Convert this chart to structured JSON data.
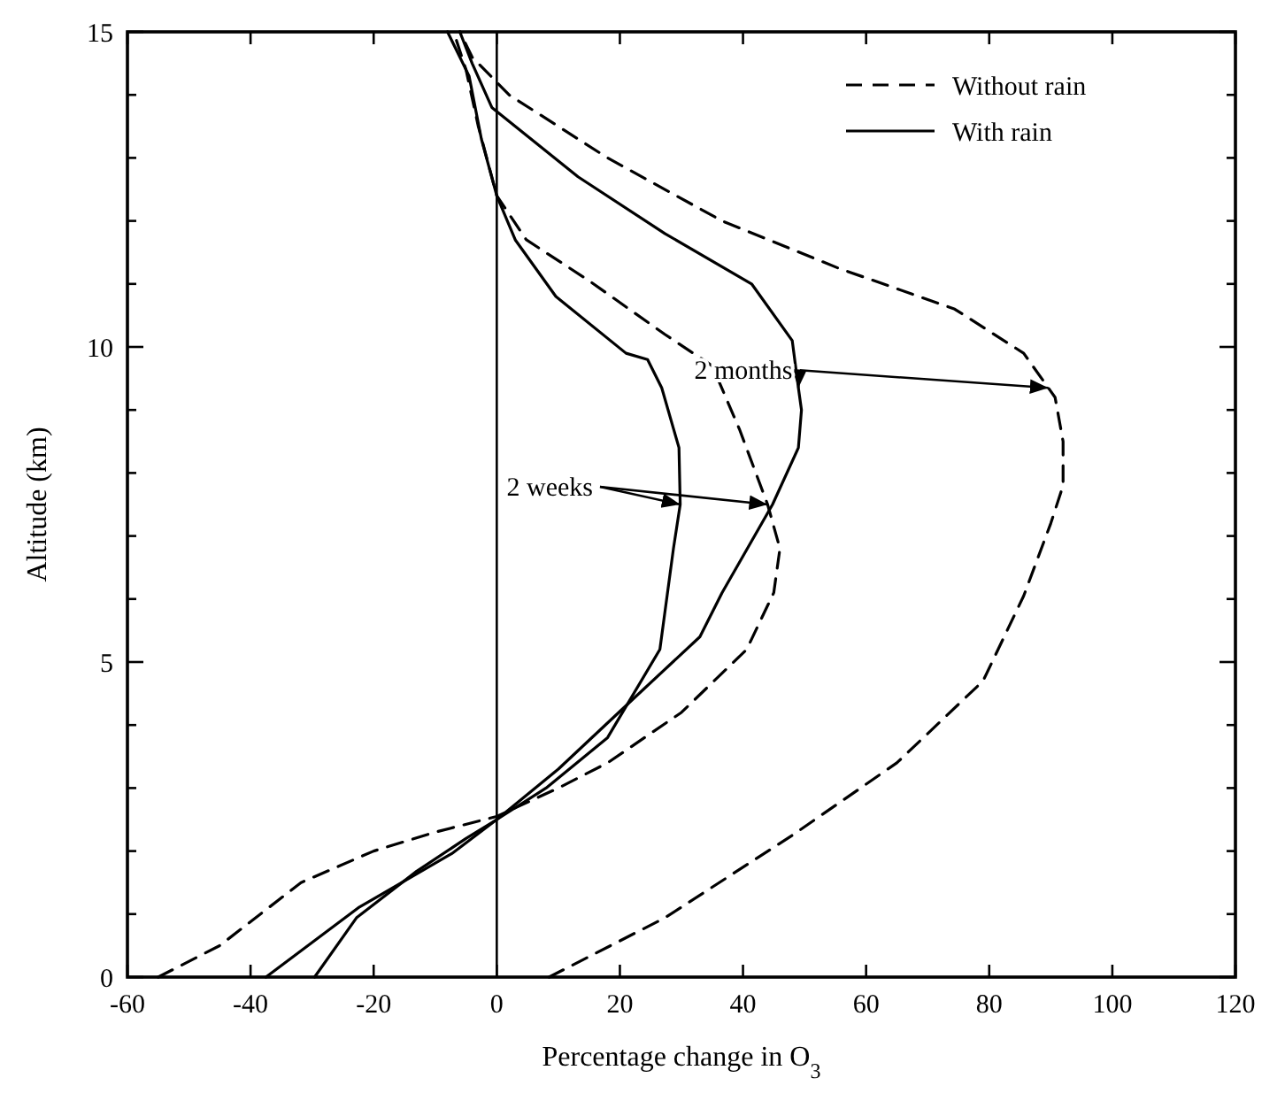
{
  "chart_data": {
    "type": "line",
    "xlabel": "Percentage change in O$_{3}$",
    "ylabel": "Altitude (km)",
    "xlim": [
      -60,
      120
    ],
    "xticks": [
      -60,
      -40,
      -20,
      0,
      20,
      40,
      60,
      80,
      100,
      120
    ],
    "ylim": [
      0,
      15
    ],
    "yticks": [
      0,
      {
        "value": 1,
        "label": null
      },
      {
        "value": 2,
        "label": null
      },
      {
        "value": 3,
        "label": null
      },
      {
        "value": 4,
        "label": null
      },
      5,
      {
        "value": 6,
        "label": null
      },
      {
        "value": 7,
        "label": null
      },
      {
        "value": 8,
        "label": null
      },
      {
        "value": 9,
        "label": null
      },
      10,
      {
        "value": 11,
        "label": null
      },
      {
        "value": 12,
        "label": null
      },
      {
        "value": 13,
        "label": null
      },
      {
        "value": 14,
        "label": null
      },
      15
    ],
    "grid": false,
    "legend": "top right",
    "ref_lines": [
      {
        "axis": "x",
        "value": 0,
        "color": "#000000"
      }
    ],
    "annotations": [
      {
        "text": "2 weeks",
        "x": 29.8,
        "y": 7.5
      },
      {
        "text": "2 months",
        "x": 49,
        "y": 9.35
      }
    ],
    "series": [
      {
        "name": "Without rain",
        "color": "#000000",
        "line_style": "dashed",
        "x": [
          -55,
          -45,
          -31.8,
          -20,
          -10,
          0,
          10,
          18,
          30,
          40.6,
          45,
          46,
          44,
          39.4,
          35,
          27.3,
          15,
          4.8,
          0,
          -3,
          -5,
          -7
        ],
        "values": [
          0,
          0.5,
          1.5,
          2,
          2.3,
          2.55,
          3,
          3.4,
          4.2,
          5.2,
          6.1,
          6.8,
          7.5,
          8.7,
          9.7,
          10.2,
          11.05,
          11.7,
          12.4,
          13.5,
          14.4,
          15
        ]
      },
      {
        "name": "With rain",
        "color": "#000000",
        "line_style": "solid",
        "x": [
          -29.6,
          -22.8,
          -13,
          -5,
          0,
          8,
          18,
          26.5,
          28.7,
          29.8,
          29.6,
          26.8,
          24.5,
          21,
          9.6,
          3,
          0,
          -2.5,
          -4.5,
          -8
        ],
        "values": [
          0,
          0.94,
          1.68,
          2.2,
          2.5,
          3,
          3.8,
          5.2,
          6.8,
          7.5,
          8.4,
          9.35,
          9.8,
          9.9,
          10.8,
          11.7,
          12.4,
          13.3,
          14.3,
          15
        ]
      },
      {
        "color": "#000000",
        "line_style": "dashed",
        "x": [
          8.5,
          27.3,
          48,
          65,
          79,
          85.6,
          90,
          92,
          92,
          90.7,
          85.6,
          74.4,
          55.5,
          36.6,
          18,
          2,
          -4,
          -6
        ],
        "values": [
          0,
          0.94,
          2.25,
          3.4,
          4.7,
          6.05,
          7.2,
          7.8,
          8.5,
          9.2,
          9.9,
          10.6,
          11.25,
          12,
          13,
          14,
          14.6,
          15
        ]
      },
      {
        "color": "#000000",
        "line_style": "solid",
        "x": [
          -37.5,
          -22.5,
          -7.3,
          0,
          10,
          22,
          33,
          36.6,
          44.8,
          49,
          49.5,
          49,
          48,
          41.4,
          27.3,
          13.2,
          -0.8,
          -4,
          -6
        ],
        "values": [
          0,
          1.1,
          1.96,
          2.5,
          3.3,
          4.4,
          5.4,
          6.1,
          7.5,
          8.4,
          9,
          9.35,
          10.1,
          11,
          11.8,
          12.7,
          13.8,
          14.5,
          15
        ]
      }
    ]
  }
}
